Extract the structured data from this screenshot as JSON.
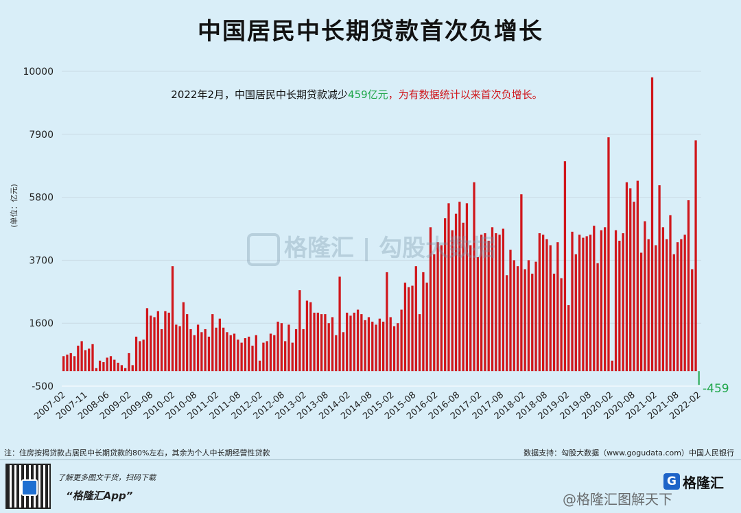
{
  "page": {
    "title": "中国居民中长期贷款首次负增长",
    "footnote_left": "注：住房按揭贷款占居民中长期贷款的80%左右，其余为个人中长期经营性贷款",
    "footnote_right": "数据支持：勾股大数据（www.gogudata.com）中国人民银行",
    "promo_line1": "了解更多图文干货，扫码下载",
    "promo_line2": "“格隆汇App”",
    "brand_logo_letter": "G",
    "brand_name": "格隆汇",
    "weibo_tag": "@格隆汇图解天下",
    "watermark_text": "格隆汇 | 勾股大数据"
  },
  "colors": {
    "background": "#d9eef8",
    "bar_positive": "#d0161b",
    "bar_negative": "#1fa64a",
    "grid": "#ffffff"
  },
  "chart_data": {
    "type": "bar",
    "ylabel": "(单位：亿元)",
    "ylim": [
      -500,
      10000
    ],
    "yticks": [
      -500,
      1600,
      3700,
      5800,
      7900,
      10000
    ],
    "annotation": {
      "part1": "2022年2月，中国居民中长期贷款减少",
      "part2": "459亿元",
      "part3": "，为有数据统计以来首次负增长。"
    },
    "last_label": "-459",
    "x_start": "2007-02",
    "x_end": "2022-02",
    "x_tick_labels": [
      "2007-02",
      "2007-11",
      "2008-06",
      "2009-02",
      "2009-08",
      "2010-02",
      "2010-08",
      "2011-02",
      "2011-08",
      "2012-02",
      "2012-08",
      "2013-02",
      "2013-08",
      "2014-02",
      "2014-08",
      "2015-02",
      "2015-08",
      "2016-02",
      "2016-08",
      "2017-02",
      "2017-08",
      "2018-02",
      "2018-08",
      "2019-02",
      "2019-08",
      "2020-02",
      "2020-08",
      "2021-02",
      "2021-08",
      "2022-02"
    ],
    "values": [
      500,
      550,
      600,
      500,
      850,
      1000,
      700,
      750,
      900,
      100,
      350,
      300,
      450,
      500,
      380,
      280,
      200,
      100,
      600,
      200,
      1150,
      1000,
      1050,
      2100,
      1850,
      1800,
      2000,
      1400,
      2000,
      1950,
      3500,
      1550,
      1500,
      2300,
      1900,
      1400,
      1200,
      1550,
      1300,
      1400,
      1150,
      1900,
      1450,
      1750,
      1450,
      1300,
      1200,
      1250,
      1050,
      950,
      1100,
      1150,
      850,
      1200,
      350,
      950,
      1000,
      1250,
      1200,
      1650,
      1600,
      1000,
      1550,
      950,
      1400,
      2700,
      1400,
      2350,
      2300,
      1950,
      1950,
      1900,
      1900,
      1600,
      1800,
      1200,
      3150,
      1300,
      1950,
      1850,
      1950,
      2050,
      1900,
      1700,
      1800,
      1650,
      1550,
      1750,
      1650,
      3300,
      1800,
      1500,
      1600,
      2050,
      2950,
      2800,
      2850,
      3500,
      1900,
      3300,
      2950,
      4800,
      3900,
      4300,
      4200,
      5100,
      5600,
      4700,
      5250,
      5650,
      4950,
      5600,
      4200,
      6300,
      3800,
      4550,
      4600,
      4350,
      4800,
      4600,
      4550,
      4750,
      3200,
      4050,
      3700,
      3500,
      5900,
      3400,
      3700,
      3250,
      3650,
      4600,
      4550,
      4400,
      4200,
      3250,
      4300,
      3100,
      7000,
      2200,
      4650,
      3900,
      4550,
      4450,
      4500,
      4550,
      4850,
      3600,
      4700,
      4800,
      7800,
      350,
      4700,
      4350,
      4600,
      6300,
      6100,
      5650,
      6350,
      3950,
      5000,
      4400,
      9800,
      4200,
      6200,
      4800,
      4400,
      5200,
      3900,
      4300,
      4400,
      4550,
      5700,
      3400,
      7700,
      -459
    ]
  }
}
